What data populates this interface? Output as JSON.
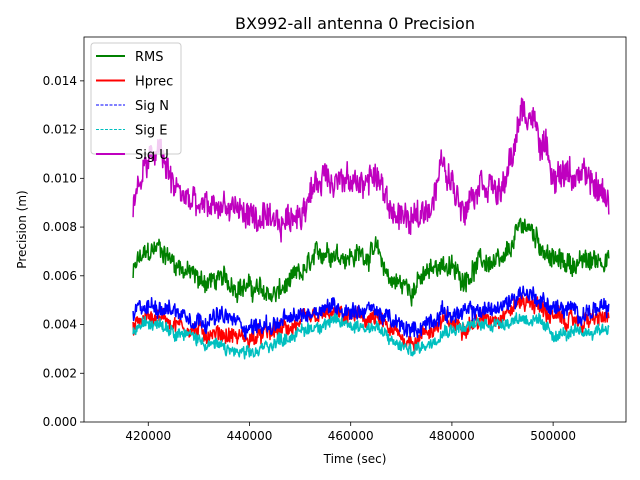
{
  "chart_data": {
    "type": "line",
    "title": "BX992-all antenna 0 Precision",
    "xlabel": "Time (sec)",
    "ylabel": "Precision (m)",
    "xlim": [
      407300,
      514400
    ],
    "ylim": [
      0,
      0.0158
    ],
    "xticks": [
      420000,
      440000,
      460000,
      480000,
      500000
    ],
    "yticks": [
      0.0,
      0.002,
      0.004,
      0.006,
      0.008,
      0.01,
      0.012,
      0.014
    ],
    "xtick_labels": [
      "420000",
      "440000",
      "460000",
      "480000",
      "500000"
    ],
    "ytick_labels": [
      "0.000",
      "0.002",
      "0.004",
      "0.006",
      "0.008",
      "0.010",
      "0.012",
      "0.014"
    ],
    "grid": false,
    "legend_position": "top-left",
    "x": [
      417000,
      418000,
      422000,
      425000,
      430000,
      435000,
      440000,
      445000,
      450000,
      455000,
      460000,
      465000,
      468000,
      472000,
      476000,
      478000,
      482000,
      486000,
      490000,
      494000,
      496000,
      500000,
      505000,
      511000
    ],
    "series": [
      {
        "name": "RMS",
        "color": "#008000",
        "dash": false,
        "noise": 0.0005,
        "values": [
          0.006,
          0.0066,
          0.0072,
          0.0066,
          0.0058,
          0.0058,
          0.0055,
          0.0052,
          0.006,
          0.0071,
          0.0068,
          0.007,
          0.0058,
          0.0055,
          0.0062,
          0.0066,
          0.0059,
          0.0066,
          0.0064,
          0.0082,
          0.0078,
          0.0066,
          0.0065,
          0.0068
        ]
      },
      {
        "name": "Hprec",
        "color": "#ff0000",
        "dash": false,
        "noise": 0.0004,
        "values": [
          0.0038,
          0.0041,
          0.0044,
          0.0041,
          0.0037,
          0.0036,
          0.0034,
          0.0037,
          0.004,
          0.0044,
          0.0043,
          0.0042,
          0.0037,
          0.0033,
          0.0038,
          0.0041,
          0.004,
          0.0042,
          0.0044,
          0.005,
          0.0049,
          0.0043,
          0.0041,
          0.0043
        ]
      },
      {
        "name": "Sig N",
        "color": "#0000ff",
        "dash": true,
        "noise": 0.0004,
        "values": [
          0.0043,
          0.0046,
          0.0048,
          0.0046,
          0.0042,
          0.0043,
          0.0039,
          0.004,
          0.0043,
          0.0048,
          0.0046,
          0.0046,
          0.0041,
          0.0037,
          0.0042,
          0.0045,
          0.0044,
          0.0046,
          0.0047,
          0.0054,
          0.0052,
          0.0047,
          0.0045,
          0.0046
        ]
      },
      {
        "name": "Sig E",
        "color": "#00bfbf",
        "dash": true,
        "noise": 0.0003,
        "values": [
          0.0036,
          0.0039,
          0.0042,
          0.0038,
          0.0034,
          0.003,
          0.0027,
          0.0033,
          0.0037,
          0.0041,
          0.004,
          0.0039,
          0.0033,
          0.0029,
          0.0033,
          0.0038,
          0.0039,
          0.004,
          0.0041,
          0.0043,
          0.0042,
          0.0036,
          0.0036,
          0.0039
        ]
      },
      {
        "name": "Sig U",
        "color": "#bf00bf",
        "dash": false,
        "noise": 0.0007,
        "values": [
          0.0085,
          0.0099,
          0.0112,
          0.0097,
          0.0087,
          0.0089,
          0.0085,
          0.0079,
          0.0087,
          0.0103,
          0.0097,
          0.0101,
          0.0087,
          0.0081,
          0.0091,
          0.0106,
          0.0089,
          0.0101,
          0.0093,
          0.0128,
          0.0124,
          0.0103,
          0.0101,
          0.0092
        ]
      }
    ]
  }
}
